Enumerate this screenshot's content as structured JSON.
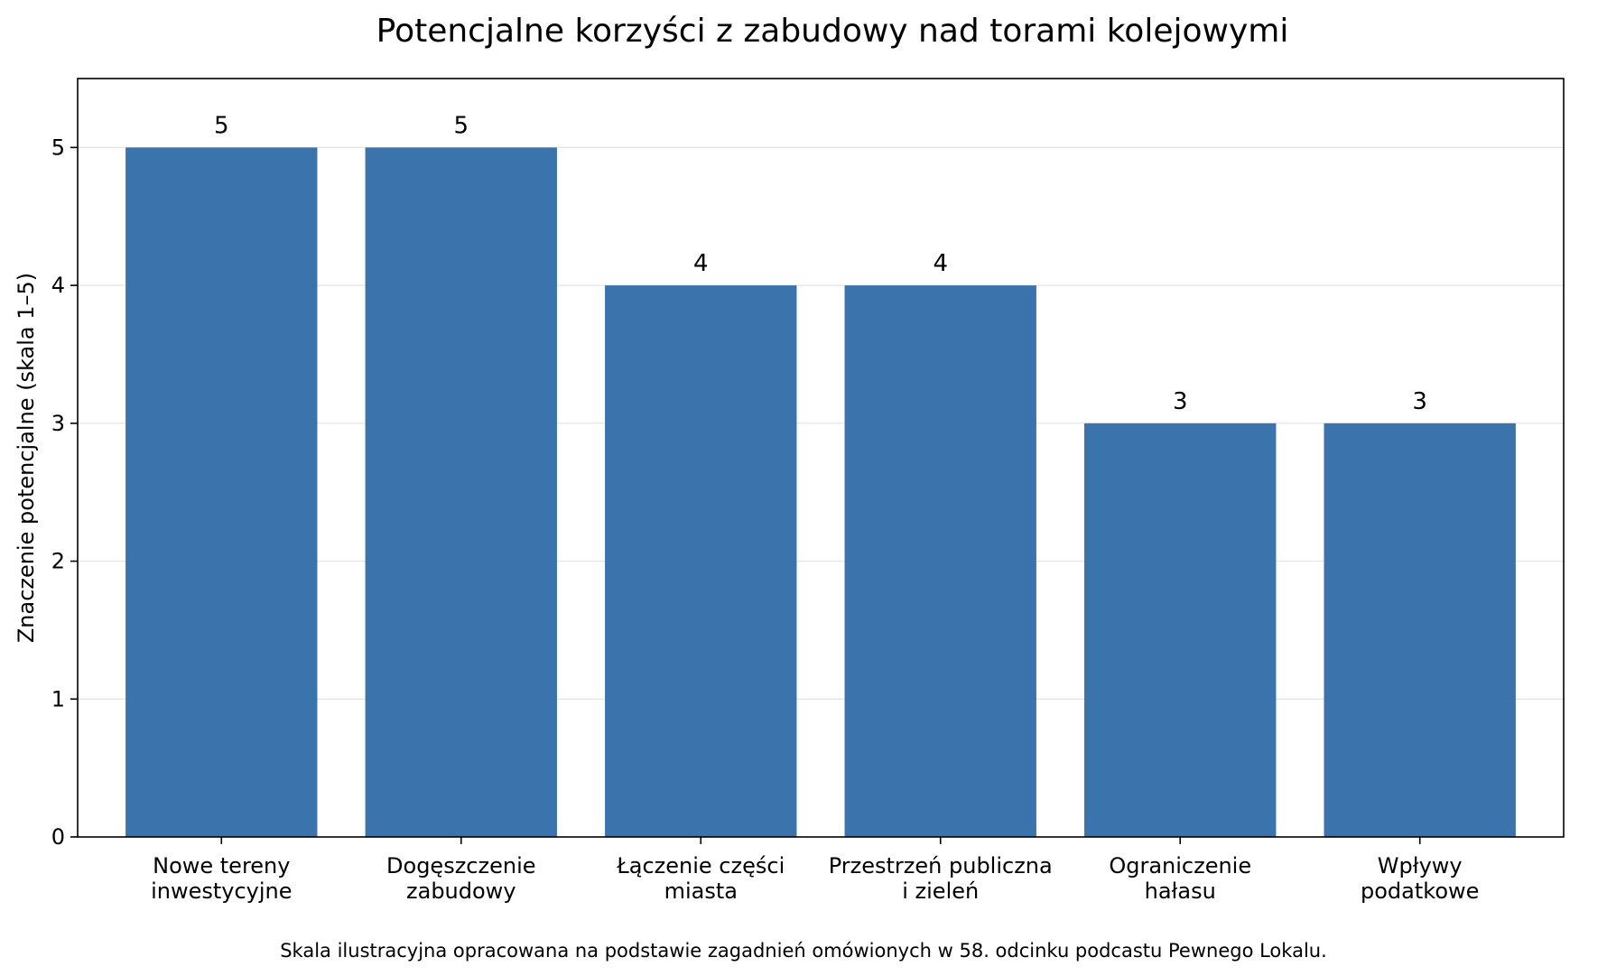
{
  "chart_data": {
    "type": "bar",
    "title": "Potencjalne korzyści z zabudowy nad torami kolejowymi",
    "xlabel": "",
    "ylabel": "Znaczenie potencjalne (skala 1–5)",
    "categories": [
      [
        "Nowe tereny",
        "inwestycyjne"
      ],
      [
        "Dogęszczenie",
        "zabudowy"
      ],
      [
        "Łączenie części",
        "miasta"
      ],
      [
        "Przestrzeń publiczna",
        "i zieleń"
      ],
      [
        "Ograniczenie",
        "hałasu"
      ],
      [
        "Wpływy",
        "podatkowe"
      ]
    ],
    "values": [
      5,
      5,
      4,
      4,
      3,
      3
    ],
    "data_labels": [
      "5",
      "5",
      "4",
      "4",
      "3",
      "3"
    ],
    "ylim": [
      0,
      5.5
    ],
    "yticks": [
      0,
      1,
      2,
      3,
      4,
      5
    ],
    "grid": "y",
    "legend": "none",
    "bar_color": "#3b74ad",
    "caption": "Skala ilustracyjna opracowana na podstawie zagadnień omówionych w 58. odcinku podcastu Pewnego Lokalu."
  }
}
